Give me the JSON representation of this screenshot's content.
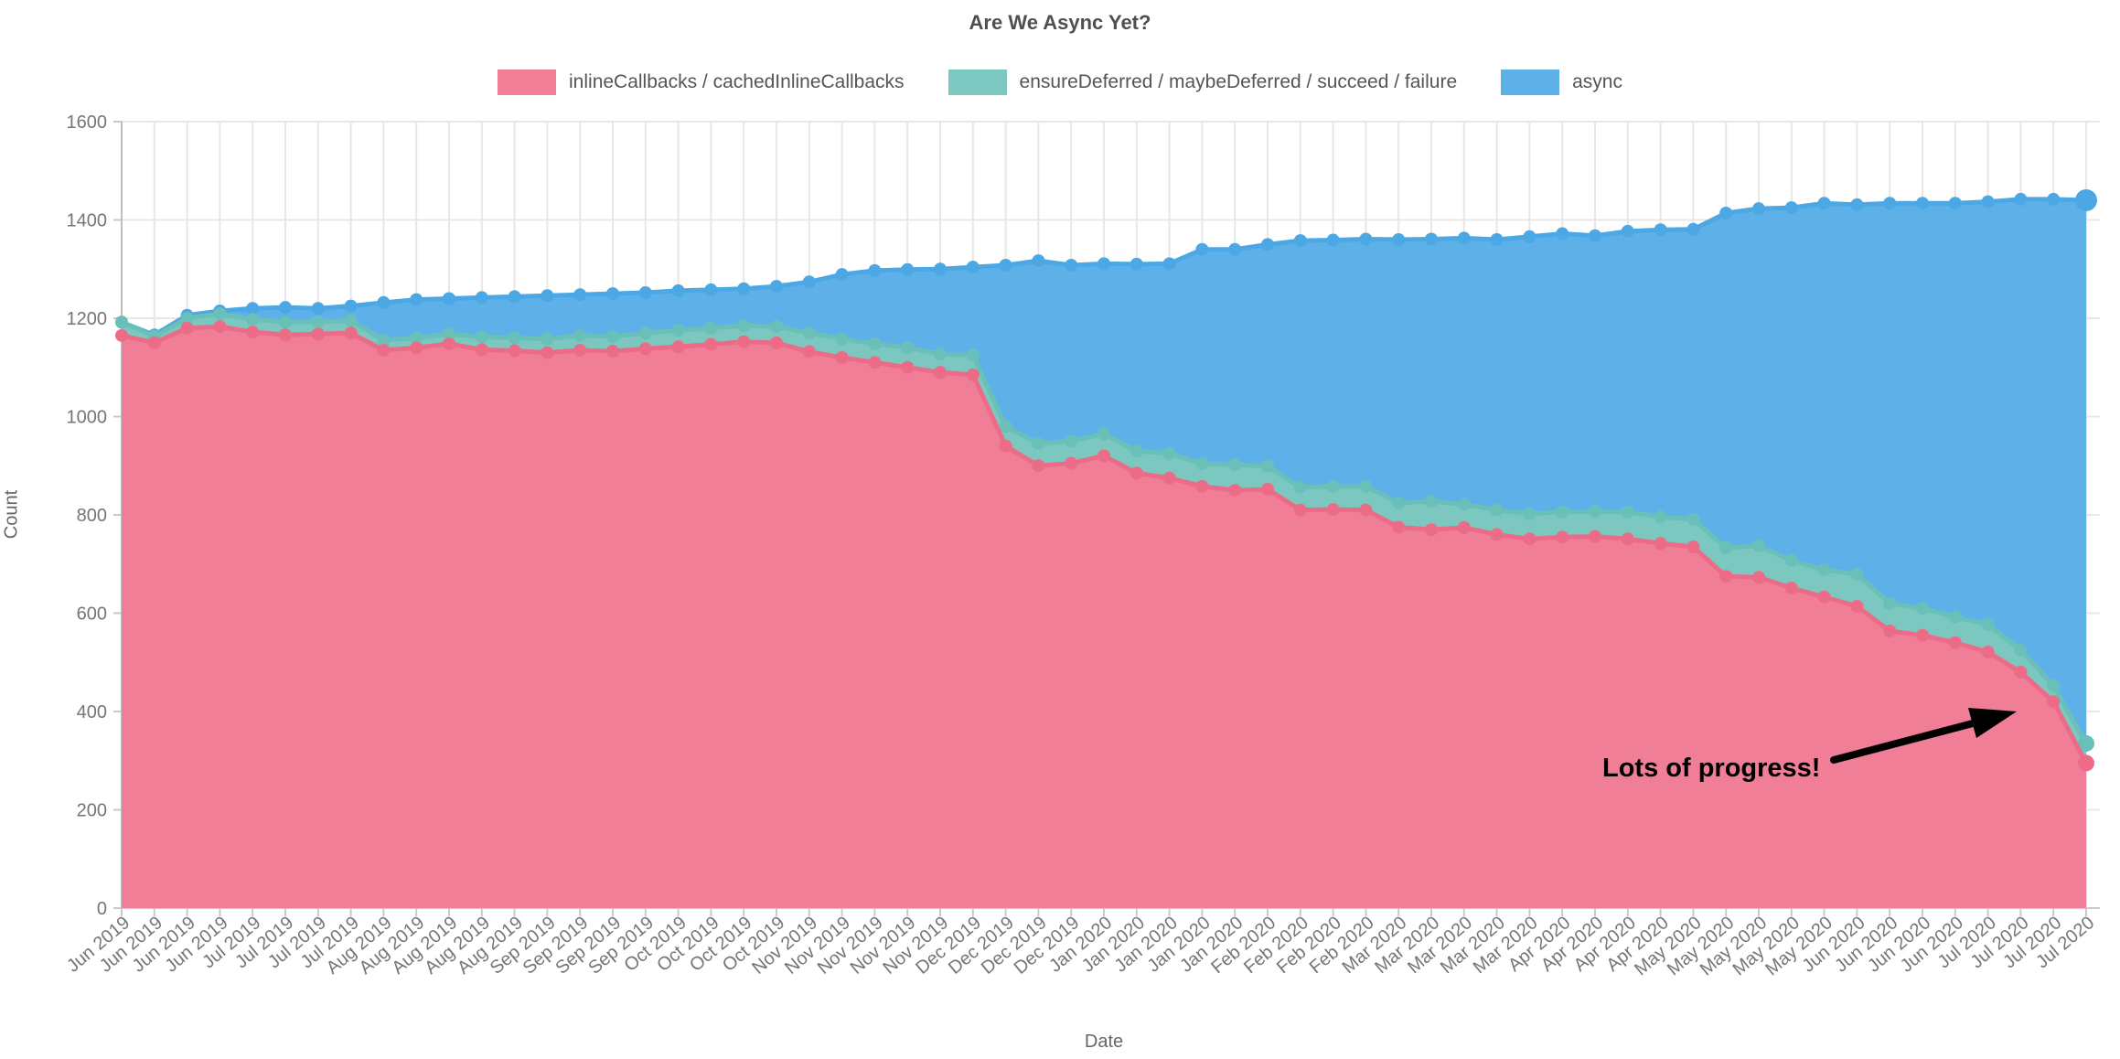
{
  "header": {
    "title": "Are We Async Yet?"
  },
  "legend": {
    "items": [
      {
        "label": "inlineCallbacks / cachedInlineCallbacks",
        "color": "#EF7E96"
      },
      {
        "label": "ensureDeferred / maybeDeferred / succeed / failure",
        "color": "#7CC8C1"
      },
      {
        "label": "async",
        "color": "#5EB1E8"
      }
    ]
  },
  "axes": {
    "x_title": "Date",
    "y_title": "Count",
    "y_ticks": [
      0,
      200,
      400,
      600,
      800,
      1000,
      1200,
      1400,
      1600
    ]
  },
  "annotation": {
    "text": "Lots of progress!"
  },
  "chart_data": {
    "type": "area",
    "stacked": true,
    "title": "Are We Async Yet?",
    "xlabel": "Date",
    "ylabel": "Count",
    "ylim": [
      0,
      1600
    ],
    "grid": true,
    "legend_position": "top",
    "x": [
      "Jun 2019",
      "Jun 2019",
      "Jun 2019",
      "Jun 2019",
      "Jul 2019",
      "Jul 2019",
      "Jul 2019",
      "Jul 2019",
      "Aug 2019",
      "Aug 2019",
      "Aug 2019",
      "Aug 2019",
      "Aug 2019",
      "Sep 2019",
      "Sep 2019",
      "Sep 2019",
      "Sep 2019",
      "Oct 2019",
      "Oct 2019",
      "Oct 2019",
      "Oct 2019",
      "Nov 2019",
      "Nov 2019",
      "Nov 2019",
      "Nov 2019",
      "Nov 2019",
      "Dec 2019",
      "Dec 2019",
      "Dec 2019",
      "Dec 2019",
      "Jan 2020",
      "Jan 2020",
      "Jan 2020",
      "Jan 2020",
      "Jan 2020",
      "Feb 2020",
      "Feb 2020",
      "Feb 2020",
      "Feb 2020",
      "Mar 2020",
      "Mar 2020",
      "Mar 2020",
      "Mar 2020",
      "Mar 2020",
      "Apr 2020",
      "Apr 2020",
      "Apr 2020",
      "Apr 2020",
      "May 2020",
      "May 2020",
      "May 2020",
      "May 2020",
      "May 2020",
      "Jun 2020",
      "Jun 2020",
      "Jun 2020",
      "Jun 2020",
      "Jul 2020",
      "Jul 2020",
      "Jul 2020",
      "Jul 2020"
    ],
    "series": [
      {
        "name": "inlineCallbacks / cachedInlineCallbacks",
        "fill_color": "#EF7E96",
        "line_color": "#EC6C88",
        "values": [
          1165,
          1150,
          1180,
          1183,
          1172,
          1166,
          1168,
          1170,
          1135,
          1140,
          1148,
          1136,
          1134,
          1130,
          1135,
          1133,
          1138,
          1142,
          1147,
          1152,
          1150,
          1132,
          1120,
          1110,
          1100,
          1090,
          1085,
          940,
          900,
          905,
          920,
          885,
          875,
          858,
          850,
          852,
          810,
          811,
          810,
          775,
          770,
          774,
          760,
          751,
          755,
          756,
          751,
          742,
          735,
          675,
          673,
          651,
          633,
          614,
          564,
          555,
          540,
          521,
          480,
          420,
          295
        ]
      },
      {
        "name": "ensureDeferred / maybeDeferred / succeed / failure",
        "fill_color": "#7CC8C1",
        "line_color": "#69C0B8",
        "values": [
          27,
          13,
          20,
          26,
          26,
          26,
          25,
          25,
          20,
          20,
          20,
          26,
          26,
          28,
          30,
          30,
          32,
          33,
          33,
          33,
          33,
          38,
          38,
          38,
          40,
          37,
          40,
          40,
          45,
          45,
          45,
          45,
          50,
          46,
          52,
          47,
          46,
          47,
          48,
          49,
          58,
          47,
          50,
          51,
          51,
          51,
          55,
          54,
          56,
          58,
          64,
          56,
          55,
          65,
          56,
          55,
          52,
          56,
          45,
          32,
          40
        ]
      },
      {
        "name": "async",
        "fill_color": "#5EB1E8",
        "line_color": "#4BA8E4",
        "values": [
          0,
          3,
          6,
          6,
          22,
          30,
          27,
          30,
          77,
          78,
          72,
          80,
          84,
          88,
          83,
          87,
          82,
          81,
          78,
          75,
          82,
          104,
          131,
          149,
          159,
          173,
          179,
          328,
          372,
          358,
          346,
          380,
          386,
          436,
          438,
          451,
          502,
          501,
          503,
          536,
          533,
          542,
          550,
          564,
          566,
          561,
          571,
          584,
          590,
          681,
          686,
          718,
          746,
          752,
          814,
          824,
          842,
          860,
          917,
          990,
          1105
        ]
      }
    ]
  }
}
